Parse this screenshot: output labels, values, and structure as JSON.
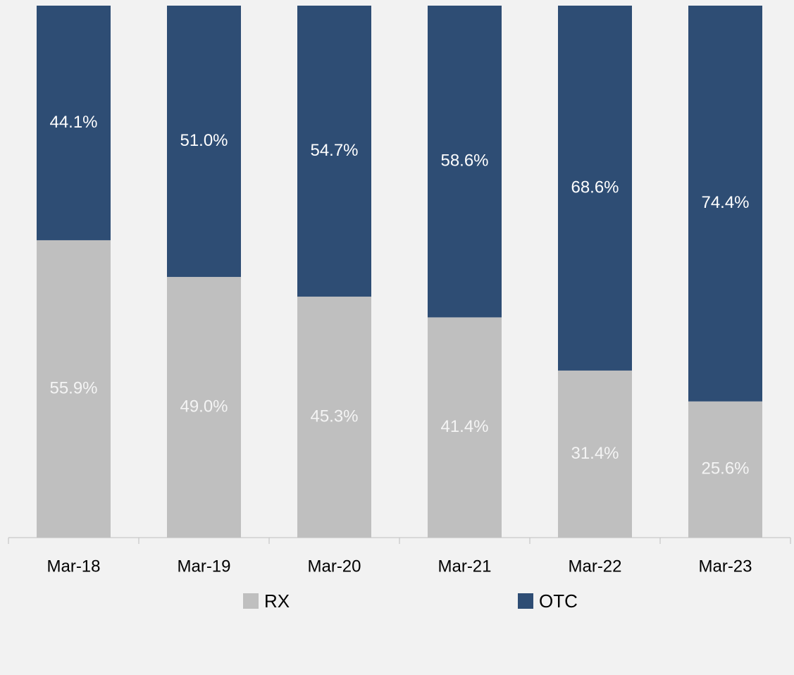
{
  "chart_data": {
    "type": "stacked_bar",
    "categories": [
      "Mar-18",
      "Mar-19",
      "Mar-20",
      "Mar-21",
      "Mar-22",
      "Mar-23"
    ],
    "series": [
      {
        "name": "RX",
        "color": "#bfbfbf",
        "values": [
          55.9,
          49.0,
          45.3,
          41.4,
          31.4,
          25.6
        ],
        "value_labels": [
          "55.9%",
          "49.0%",
          "45.3%",
          "41.4%",
          "31.4%",
          "25.6%"
        ]
      },
      {
        "name": "OTC",
        "color": "#2e4d74",
        "values": [
          44.1,
          51.0,
          54.7,
          58.6,
          68.6,
          74.4
        ],
        "value_labels": [
          "44.1%",
          "51.0%",
          "54.7%",
          "58.6%",
          "68.6%",
          "74.4%"
        ]
      }
    ],
    "ylim": [
      0,
      100
    ],
    "legend": "bottom"
  }
}
